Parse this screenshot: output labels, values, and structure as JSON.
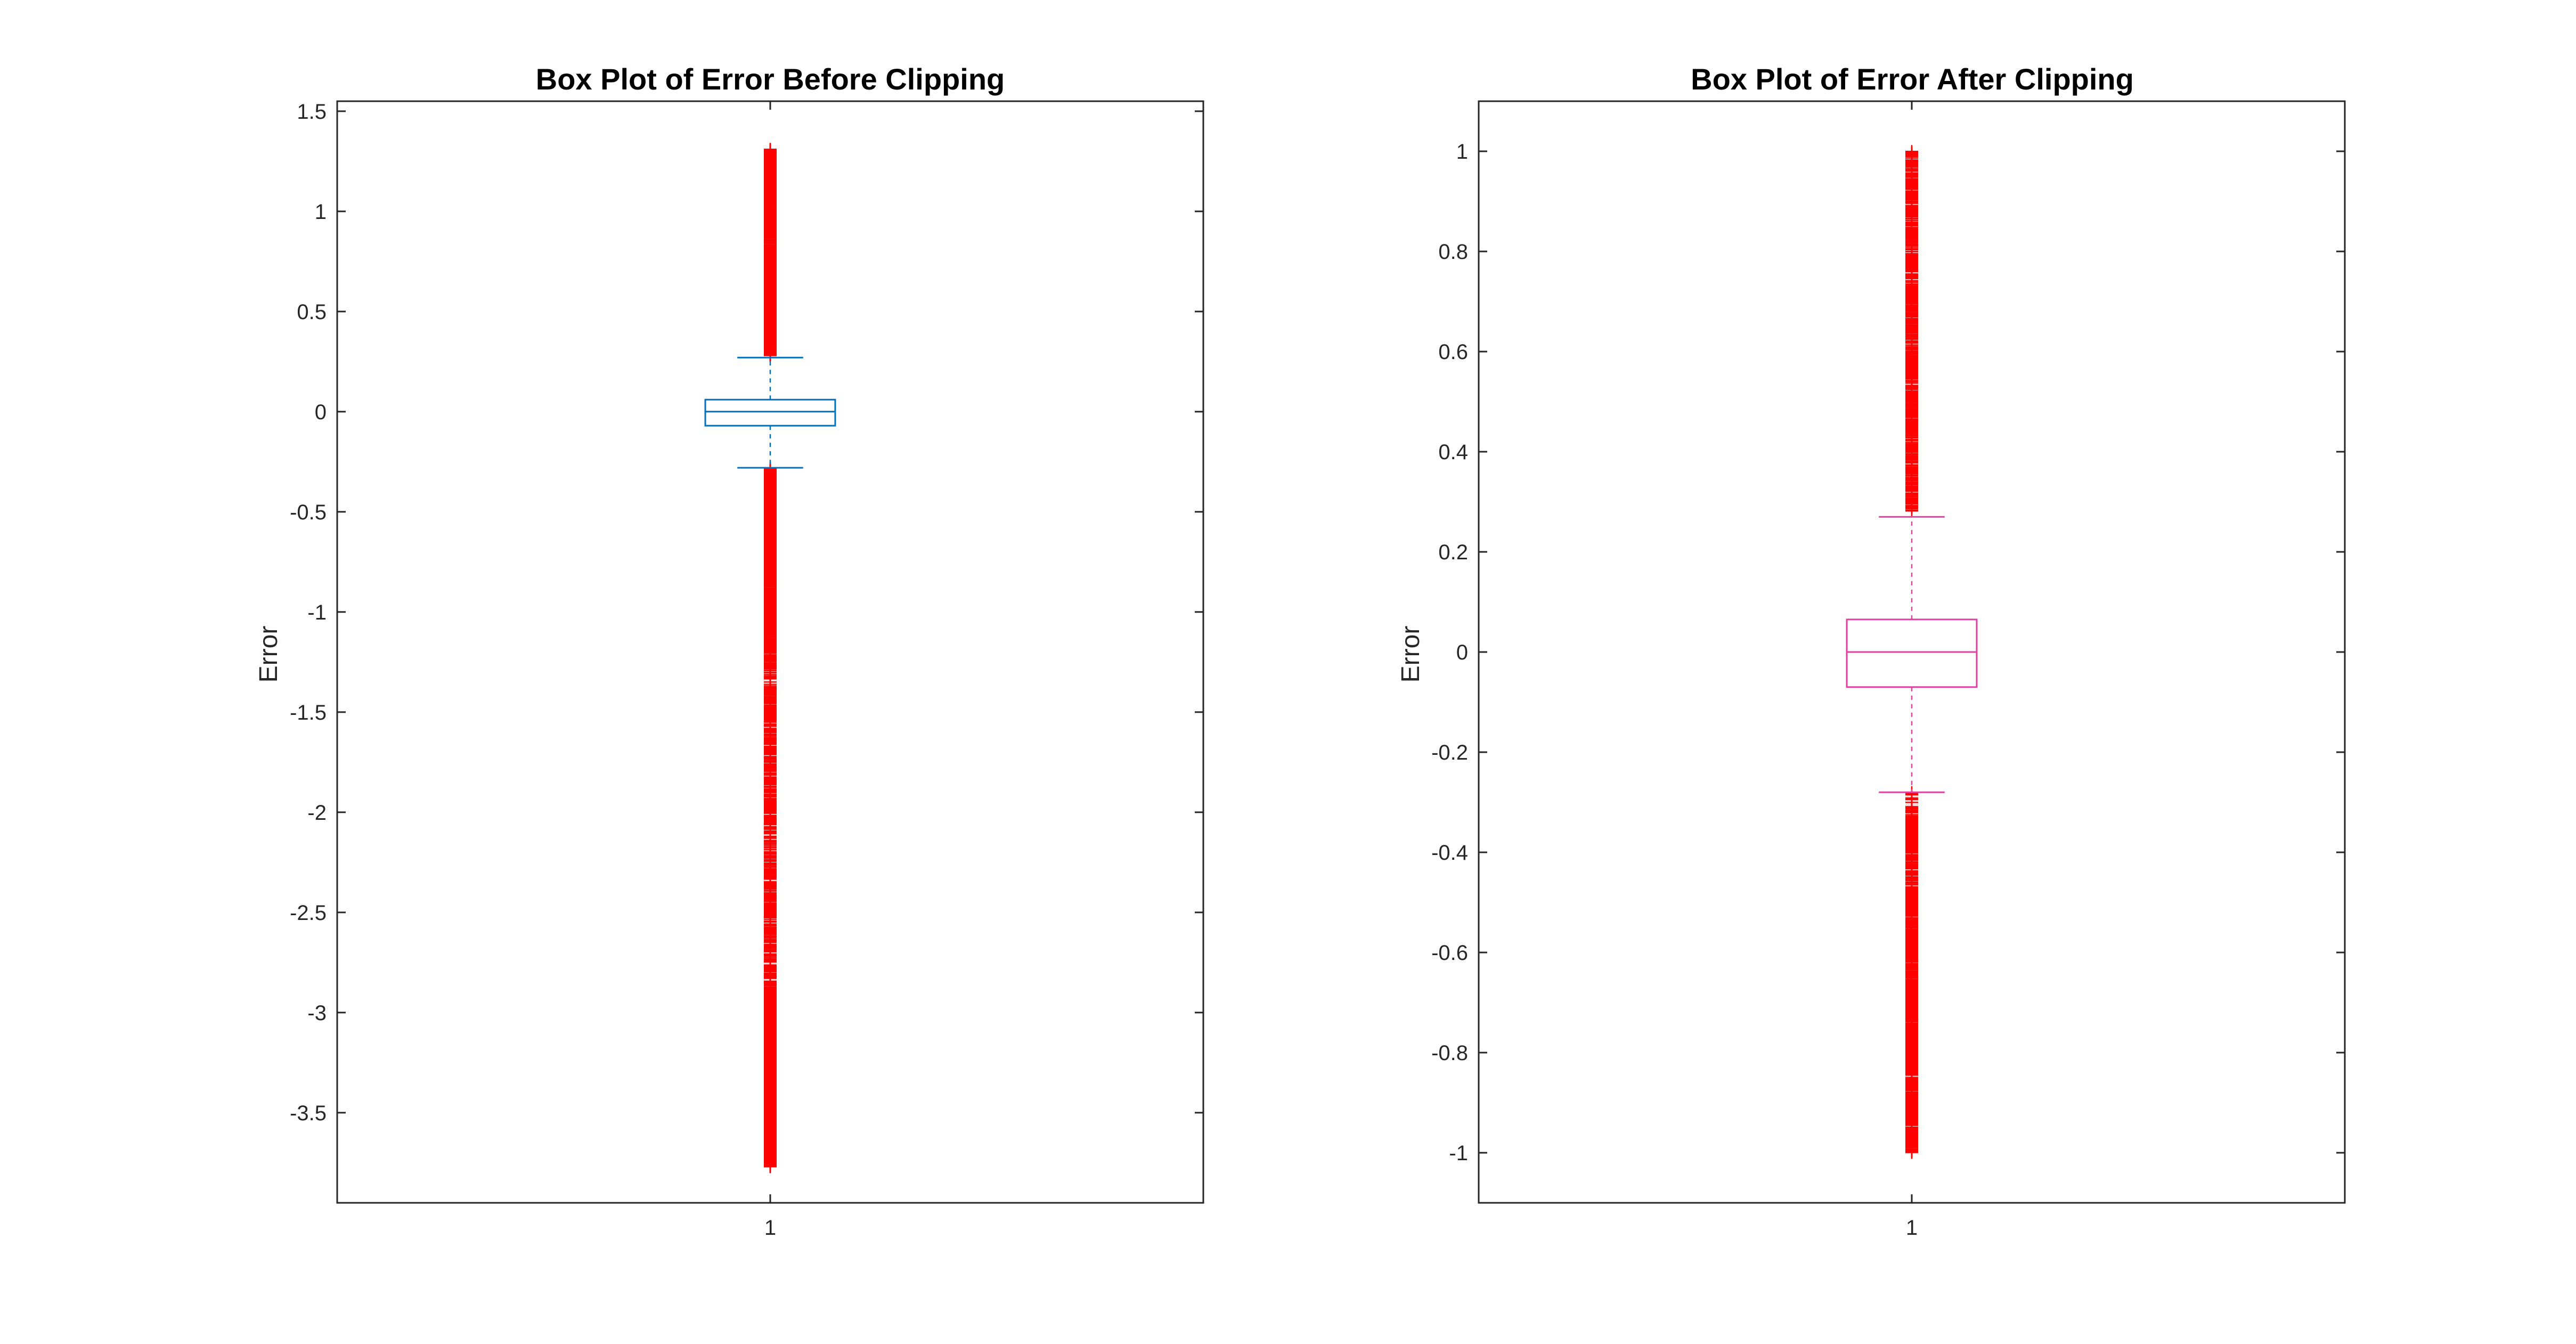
{
  "chart_data": [
    {
      "type": "boxplot",
      "title": "Box Plot of Error Before Clipping",
      "xlabel": "",
      "ylabel": "Error",
      "categories": [
        "1"
      ],
      "ylim": [
        -3.95,
        1.55
      ],
      "yticks": [
        1.5,
        1,
        0.5,
        0,
        -0.5,
        -1,
        -1.5,
        -2,
        -2.5,
        -3,
        -3.5
      ],
      "ytick_labels": [
        "1.5",
        "1",
        "0.5",
        "0",
        "-0.5",
        "-1",
        "-1.5",
        "-2",
        "-2.5",
        "-3",
        "-3.5"
      ],
      "box_color": "#0072BD",
      "median_color": "#0072BD",
      "outlier_color": "#FF0000",
      "grid": false,
      "boxes": [
        {
          "label": "1",
          "median": 0.0,
          "q1": -0.07,
          "q3": 0.06,
          "whisker_low": -0.28,
          "whisker_high": 0.27,
          "outliers_high_range": [
            0.28,
            1.31
          ],
          "outliers_low_range": [
            -3.77,
            -0.28
          ]
        }
      ]
    },
    {
      "type": "boxplot",
      "title": "Box Plot of Error After Clipping",
      "xlabel": "",
      "ylabel": "Error",
      "categories": [
        "1"
      ],
      "ylim": [
        -1.1,
        1.1
      ],
      "yticks": [
        1,
        0.8,
        0.6,
        0.4,
        0.2,
        0,
        -0.2,
        -0.4,
        -0.6,
        -0.8,
        -1
      ],
      "ytick_labels": [
        "1",
        "0.8",
        "0.6",
        "0.4",
        "0.2",
        "0",
        "-0.2",
        "-0.4",
        "-0.6",
        "-0.8",
        "-1"
      ],
      "box_color": "#E0409F",
      "median_color": "#E0409F",
      "outlier_color": "#FF0000",
      "grid": false,
      "boxes": [
        {
          "label": "1",
          "median": 0.0,
          "q1": -0.07,
          "q3": 0.065,
          "whisker_low": -0.28,
          "whisker_high": 0.27,
          "outliers_high_range": [
            0.28,
            1.0
          ],
          "outliers_low_range": [
            -1.0,
            -0.28
          ]
        }
      ]
    }
  ]
}
